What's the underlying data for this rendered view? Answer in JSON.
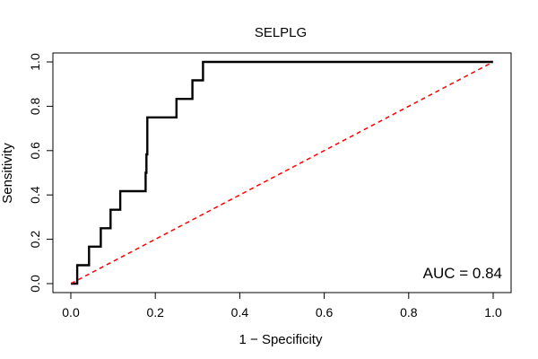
{
  "chart_data": {
    "type": "line",
    "title": "SELPLG",
    "xlabel": "1 − Specificity",
    "ylabel": "Sensitivity",
    "xlim": [
      0.0,
      1.0
    ],
    "ylim": [
      0.0,
      1.0
    ],
    "xticks": [
      "0.0",
      "0.2",
      "0.4",
      "0.6",
      "0.8",
      "1.0"
    ],
    "yticks": [
      "0.0",
      "0.2",
      "0.4",
      "0.6",
      "0.8",
      "1.0"
    ],
    "grid": false,
    "annotation": "AUC = 0.84",
    "series": [
      {
        "style": "step",
        "color": "#000000",
        "points": [
          [
            0.0,
            0.0
          ],
          [
            0.015,
            0.0
          ],
          [
            0.015,
            0.083
          ],
          [
            0.043,
            0.083
          ],
          [
            0.043,
            0.167
          ],
          [
            0.071,
            0.167
          ],
          [
            0.071,
            0.25
          ],
          [
            0.094,
            0.25
          ],
          [
            0.094,
            0.333
          ],
          [
            0.117,
            0.333
          ],
          [
            0.117,
            0.417
          ],
          [
            0.177,
            0.417
          ],
          [
            0.177,
            0.5
          ],
          [
            0.179,
            0.5
          ],
          [
            0.179,
            0.583
          ],
          [
            0.181,
            0.583
          ],
          [
            0.181,
            0.75
          ],
          [
            0.25,
            0.75
          ],
          [
            0.25,
            0.833
          ],
          [
            0.288,
            0.833
          ],
          [
            0.288,
            0.917
          ],
          [
            0.313,
            0.917
          ],
          [
            0.313,
            1.0
          ],
          [
            1.0,
            1.0
          ]
        ]
      },
      {
        "style": "diagonal",
        "color": "#ff0000",
        "dashed": true,
        "points": [
          [
            0.0,
            0.0
          ],
          [
            1.0,
            1.0
          ]
        ]
      }
    ]
  }
}
